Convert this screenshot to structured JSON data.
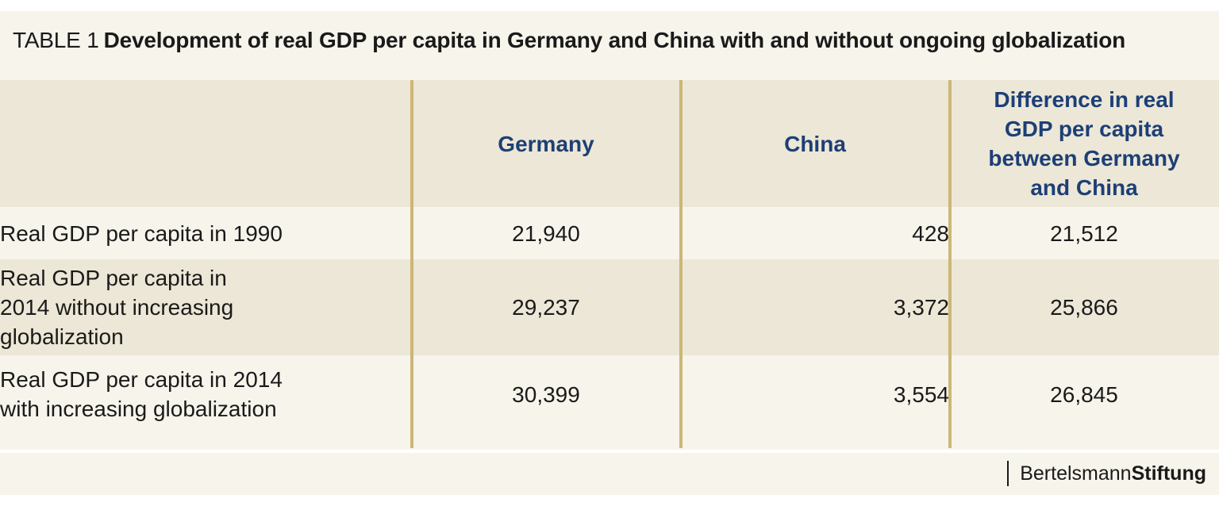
{
  "title": {
    "prefix": "TABLE 1",
    "text": "Development of real GDP per capita in Germany and China with and without ongoing globalization"
  },
  "table": {
    "headers": [
      "",
      "Germany",
      "China",
      "Difference in real GDP per capita between Germany and China"
    ],
    "rows": [
      {
        "label": "Real GDP per capita in 1990",
        "germany": "21,940",
        "china": "428",
        "difference": "21,512"
      },
      {
        "label": "Real GDP per capita in 2014 without increasing globalization",
        "germany": "29,237",
        "china": "3,372",
        "difference": "25,866"
      },
      {
        "label": "Real GDP per capita in 2014 with increasing globalization",
        "germany": "30,399",
        "china": "3,554",
        "difference": "26,845"
      }
    ]
  },
  "brand": {
    "part1": "Bertelsmann",
    "part2": "Stiftung"
  },
  "colors": {
    "header_text": "#1d3f77",
    "column_divider": "#cdb676",
    "band": "#ece7d6",
    "background": "#f7f4ec"
  }
}
